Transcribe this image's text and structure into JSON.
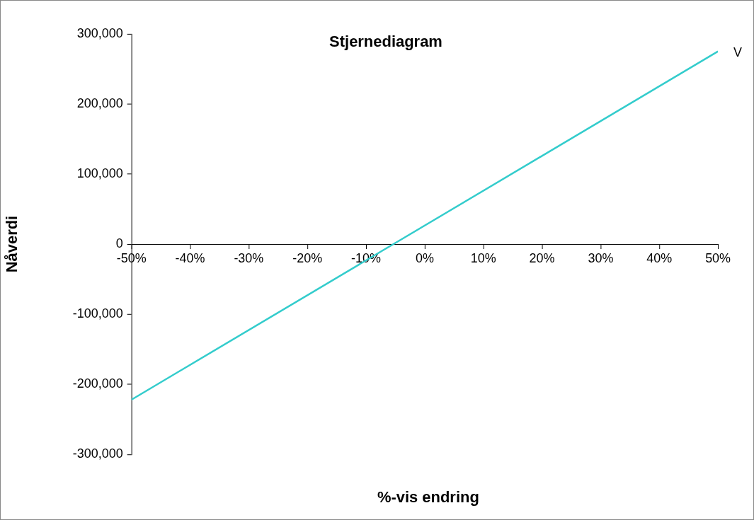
{
  "chart_data": {
    "type": "line",
    "title": "Stjernediagram",
    "xlabel": "%-vis endring",
    "ylabel": "Nåverdi",
    "x": [
      -50,
      50
    ],
    "series": [
      {
        "name": "V",
        "color": "#33cccc",
        "values": [
          -222000,
          275000
        ]
      }
    ],
    "xlim": [
      -50,
      50
    ],
    "xticks": [
      {
        "value": -50,
        "label": "-50%"
      },
      {
        "value": -40,
        "label": "-40%"
      },
      {
        "value": -30,
        "label": "-30%"
      },
      {
        "value": -20,
        "label": "-20%"
      },
      {
        "value": -10,
        "label": "-10%"
      },
      {
        "value": 0,
        "label": "0%"
      },
      {
        "value": 10,
        "label": "10%"
      },
      {
        "value": 20,
        "label": "20%"
      },
      {
        "value": 30,
        "label": "30%"
      },
      {
        "value": 40,
        "label": "40%"
      },
      {
        "value": 50,
        "label": "50%"
      }
    ],
    "ylim": [
      -300000,
      300000
    ],
    "yticks": [
      {
        "value": -300000,
        "label": "-300,000"
      },
      {
        "value": -200000,
        "label": "-200,000"
      },
      {
        "value": -100000,
        "label": "-100,000"
      },
      0,
      {
        "value": 100000,
        "label": "100,000"
      },
      {
        "value": 200000,
        "label": "200,000"
      },
      {
        "value": 300000,
        "label": "300,000"
      }
    ],
    "legend": false,
    "marker": "none",
    "line_style": "solid"
  }
}
